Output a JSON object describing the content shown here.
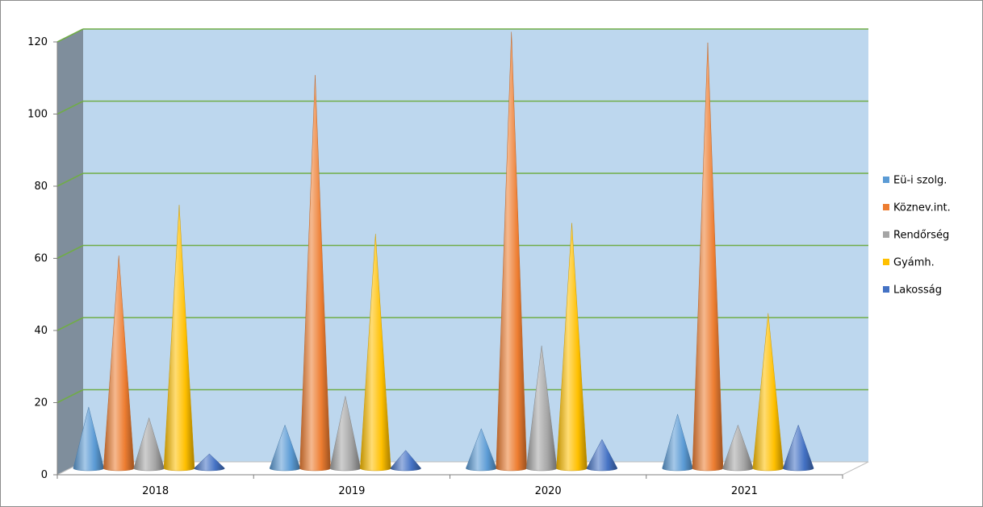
{
  "chart_data": {
    "type": "bar",
    "style": "3d-cone",
    "categories": [
      "2018",
      "2019",
      "2020",
      "2021"
    ],
    "series": [
      {
        "name": "Eü-i szolg.",
        "values": [
          17,
          12,
          11,
          15
        ],
        "color": "#5b9bd5"
      },
      {
        "name": "Köznev.int.",
        "values": [
          59,
          109,
          121,
          118
        ],
        "color": "#ed7d31"
      },
      {
        "name": "Rendőrség",
        "values": [
          14,
          20,
          34,
          12
        ],
        "color": "#a5a5a5"
      },
      {
        "name": "Gyámh.",
        "values": [
          73,
          65,
          68,
          43
        ],
        "color": "#ffc000"
      },
      {
        "name": "Lakosság",
        "values": [
          4,
          5,
          8,
          12
        ],
        "color": "#4472c4"
      }
    ],
    "yticks": [
      "0",
      "20",
      "40",
      "60",
      "80",
      "100",
      "120"
    ],
    "ylim": [
      0,
      120
    ],
    "grid": true,
    "legend": "right",
    "colors": {
      "back_wall": "#bdd7ee",
      "side_wall": "#7f8e9c",
      "floor": "#ffffff",
      "gridline": "#70ad47"
    }
  }
}
